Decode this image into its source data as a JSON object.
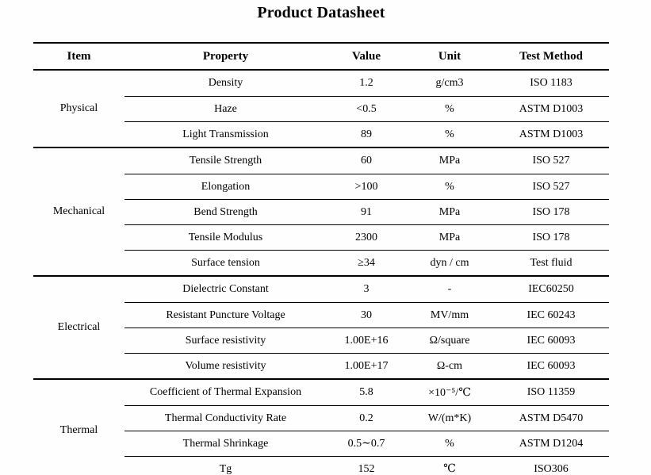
{
  "title": "Product Datasheet",
  "columns": [
    "Item",
    "Property",
    "Value",
    "Unit",
    "Test Method"
  ],
  "colors": {
    "text": "#000000",
    "rule": "#000000",
    "background": "#fefefe"
  },
  "sections": [
    {
      "item": "Physical",
      "rows": [
        {
          "property": "Density",
          "value": "1.2",
          "unit": "g/cm3",
          "method": "ISO 1183"
        },
        {
          "property": "Haze",
          "value": "<0.5",
          "unit": "%",
          "method": "ASTM D1003"
        },
        {
          "property": "Light Transmission",
          "value": "89",
          "unit": "%",
          "method": "ASTM D1003"
        }
      ]
    },
    {
      "item": "Mechanical",
      "rows": [
        {
          "property": "Tensile Strength",
          "value": "60",
          "unit": "MPa",
          "method": "ISO 527"
        },
        {
          "property": "Elongation",
          "value": ">100",
          "unit": "%",
          "method": "ISO 527"
        },
        {
          "property": "Bend Strength",
          "value": "91",
          "unit": "MPa",
          "method": "ISO 178"
        },
        {
          "property": "Tensile Modulus",
          "value": "2300",
          "unit": "MPa",
          "method": "ISO 178"
        },
        {
          "property": "Surface tension",
          "value": "≥34",
          "unit": "dyn / cm",
          "method": "Test fluid"
        }
      ]
    },
    {
      "item": "Electrical",
      "rows": [
        {
          "property": "Dielectric Constant",
          "value": "3",
          "unit": "-",
          "method": "IEC60250"
        },
        {
          "property": "Resistant Puncture Voltage",
          "value": "30",
          "unit": "MV/mm",
          "method": "IEC 60243"
        },
        {
          "property": "Surface resistivity",
          "value": "1.00E+16",
          "unit": "Ω/square",
          "method": "IEC 60093"
        },
        {
          "property": "Volume resistivity",
          "value": "1.00E+17",
          "unit": "Ω-cm",
          "method": "IEC 60093"
        }
      ]
    },
    {
      "item": "Thermal",
      "rows": [
        {
          "property": "Coefficient of Thermal Expansion",
          "value": "5.8",
          "unit": "×10⁻⁵/℃",
          "method": "ISO 11359"
        },
        {
          "property": "Thermal Conductivity Rate",
          "value": "0.2",
          "unit": "W/(m*K)",
          "method": "ASTM D5470"
        },
        {
          "property": "Thermal Shrinkage",
          "value": "0.5∼0.7",
          "unit": "%",
          "method": "ASTM D1204"
        },
        {
          "property": "Tg",
          "value": "152",
          "unit": "℃",
          "method": "ISO306"
        }
      ]
    }
  ]
}
